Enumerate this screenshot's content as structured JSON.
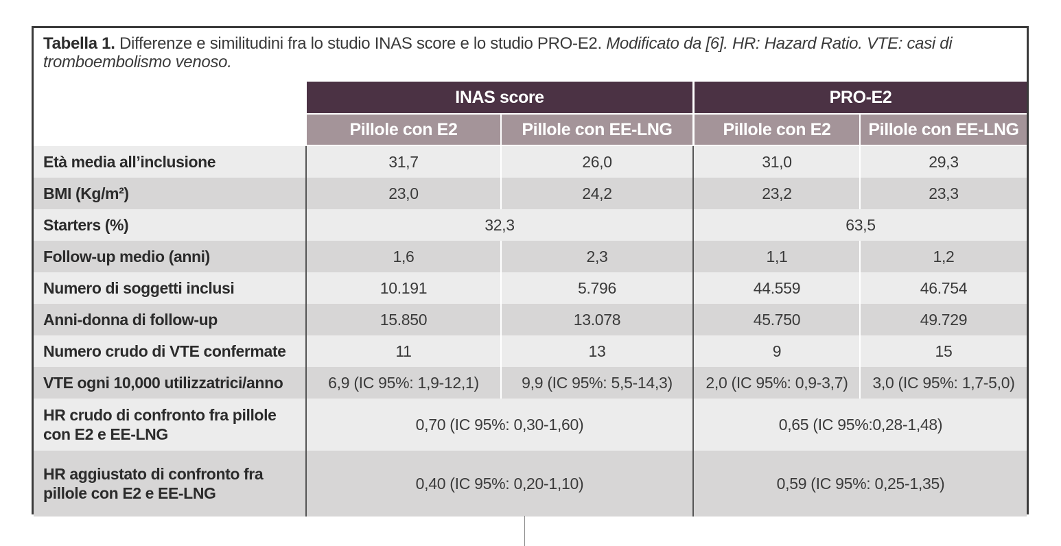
{
  "caption": {
    "bold": "Tabella 1.",
    "text": " Differenze e similitudini fra lo studio INAS score e lo studio PRO-E2. ",
    "italic": "Modificato da [6]. HR: Hazard Ratio. VTE: casi di tromboembolismo venoso."
  },
  "columns": {
    "groups": [
      "INAS score",
      "PRO-E2"
    ],
    "sub": [
      "Pillole con E2",
      "Pillole con EE-LNG",
      "Pillole con E2",
      "Pillole con EE-LNG"
    ]
  },
  "rows": [
    {
      "label": "Età media all’inclusione",
      "values": [
        "31,7",
        "26,0",
        "31,0",
        "29,3"
      ]
    },
    {
      "label": "BMI (Kg/m²)",
      "values": [
        "23,0",
        "24,2",
        "23,2",
        "23,3"
      ]
    },
    {
      "label": "Starters (%)",
      "merged": [
        "32,3",
        "63,5"
      ]
    },
    {
      "label": "Follow-up medio (anni)",
      "values": [
        "1,6",
        "2,3",
        "1,1",
        "1,2"
      ]
    },
    {
      "label": "Numero di soggetti inclusi",
      "values": [
        "10.191",
        "5.796",
        "44.559",
        "46.754"
      ]
    },
    {
      "label": "Anni-donna di follow-up",
      "values": [
        "15.850",
        "13.078",
        "45.750",
        "49.729"
      ]
    },
    {
      "label": "Numero crudo di VTE confermate",
      "values": [
        "11",
        "13",
        "9",
        "15"
      ]
    },
    {
      "label": "VTE ogni 10,000 utilizzatrici/anno",
      "values": [
        "6,9 (IC 95%: 1,9-12,1)",
        "9,9 (IC 95%: 5,5-14,3)",
        "2,0 (IC 95%: 0,9-3,7)",
        "3,0 (IC 95%: 1,7-5,0)"
      ]
    },
    {
      "label": "HR crudo di confronto fra pillole con E2 e EE-LNG",
      "merged": [
        "0,70 (IC 95%: 0,30-1,60)",
        "0,65 (IC 95%:0,28-1,48)"
      ]
    },
    {
      "label": "HR aggiustato di confronto fra pillole con E2 e EE-LNG",
      "merged": [
        "0,40 (IC 95%: 0,20-1,10)",
        "0,59 (IC 95%: 0,25-1,35)"
      ]
    }
  ]
}
